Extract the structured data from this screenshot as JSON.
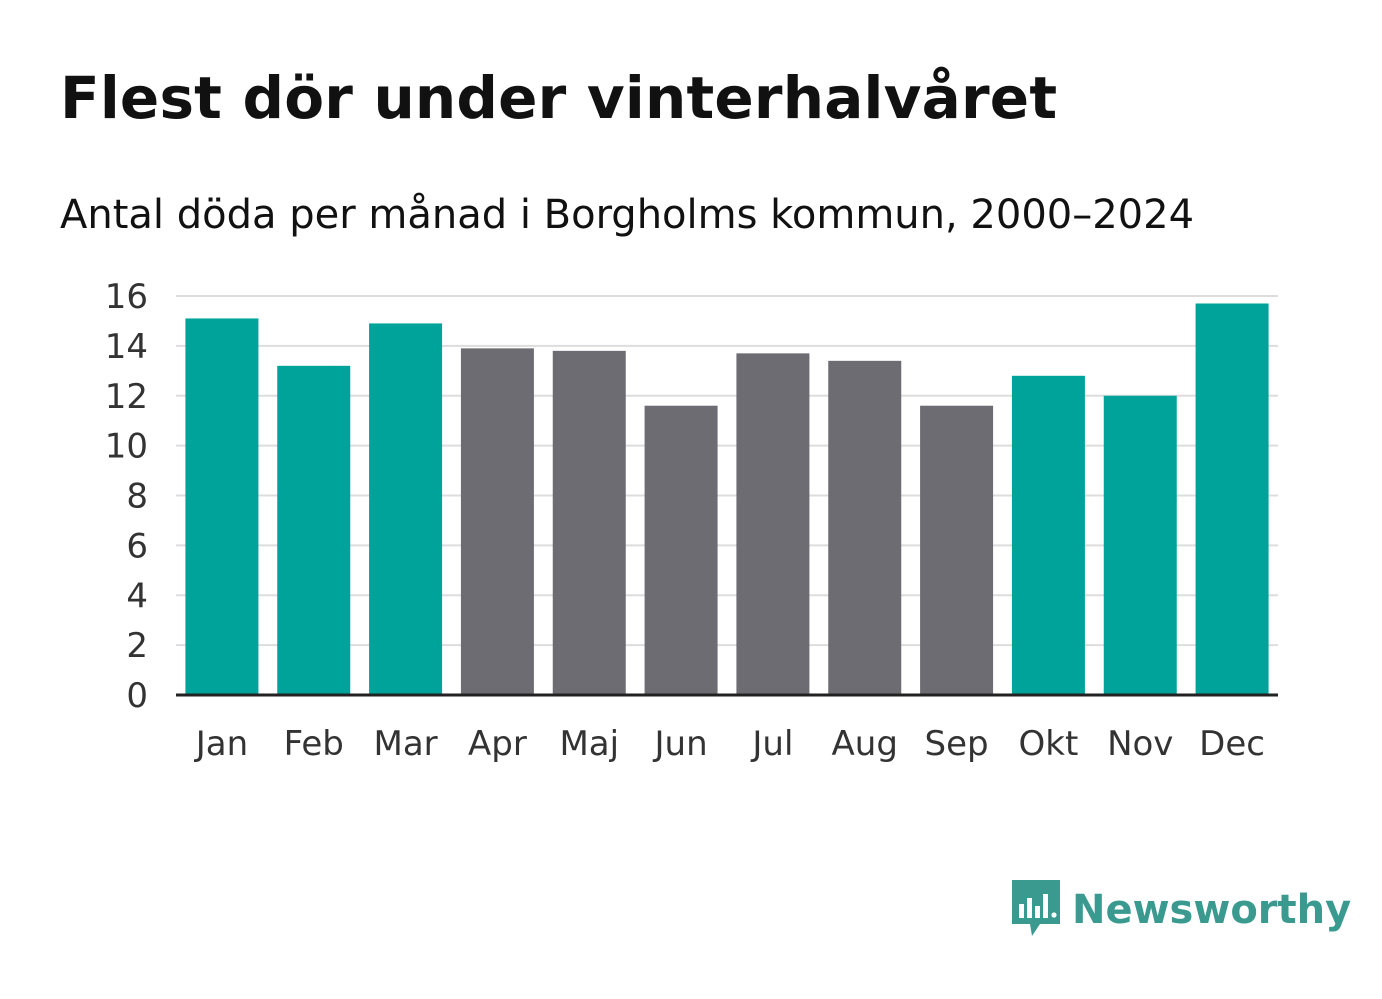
{
  "header": {
    "title": "Flest dör under vinterhalvåret",
    "subtitle": "Antal döda per månad i Borgholms kommun, 2000–2024"
  },
  "brand": {
    "name": "Newsworthy",
    "icon": "newsworthy-logo-icon",
    "color": "#3a9a8f"
  },
  "colors": {
    "winter": "#00a39a",
    "summer": "#6d6c72",
    "grid": "#dddddd",
    "axis": "#222222"
  },
  "chart_data": {
    "type": "bar",
    "title": "Flest dör under vinterhalvåret",
    "subtitle": "Antal döda per månad i Borgholms kommun, 2000–2024",
    "xlabel": "",
    "ylabel": "",
    "ylim": [
      0,
      16
    ],
    "yticks": [
      "0",
      "2",
      "4",
      "6",
      "8",
      "10",
      "12",
      "14",
      "16"
    ],
    "grid": true,
    "categories": [
      "Jan",
      "Feb",
      "Mar",
      "Apr",
      "Maj",
      "Jun",
      "Jul",
      "Aug",
      "Sep",
      "Okt",
      "Nov",
      "Dec"
    ],
    "values": [
      15.1,
      13.2,
      14.9,
      13.9,
      13.8,
      11.6,
      13.7,
      13.4,
      11.6,
      12.8,
      12.0,
      15.7
    ],
    "groups": [
      "winter",
      "winter",
      "winter",
      "summer",
      "summer",
      "summer",
      "summer",
      "summer",
      "summer",
      "winter",
      "winter",
      "winter"
    ]
  }
}
